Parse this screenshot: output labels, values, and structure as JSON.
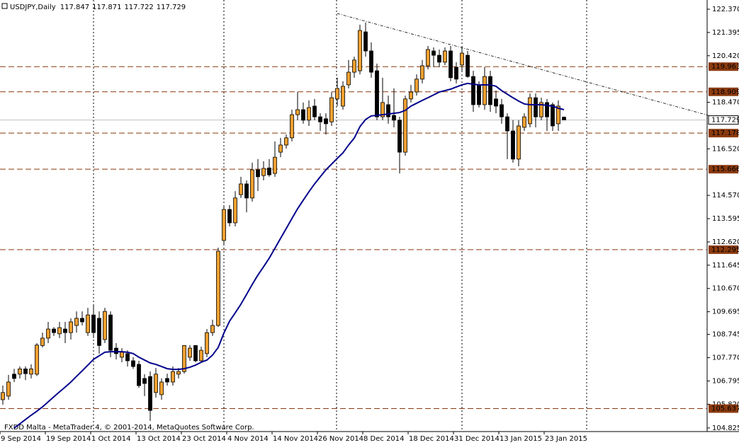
{
  "chart_data": {
    "type": "candlestick",
    "title": "USDJPY,Daily",
    "footer": "FXDD Malta - MetaTrader 4, © 2001-2014, MetaQuotes Software Corp.",
    "categories": [
      "9 Sep 2014",
      null,
      null,
      null,
      null,
      null,
      null,
      null,
      "19 Sep 2014",
      null,
      null,
      null,
      null,
      null,
      null,
      null,
      "1 Oct 2014",
      null,
      null,
      null,
      null,
      null,
      null,
      null,
      "13 Oct 2014",
      null,
      null,
      null,
      null,
      null,
      null,
      null,
      "23 Oct 2014",
      null,
      null,
      null,
      null,
      null,
      null,
      null,
      "4 Nov 2014",
      null,
      null,
      null,
      null,
      null,
      null,
      null,
      "14 Nov 2014",
      null,
      null,
      null,
      null,
      null,
      null,
      null,
      "26 Nov 2014",
      null,
      null,
      null,
      null,
      null,
      null,
      null,
      "8 Dec 2014",
      null,
      null,
      null,
      null,
      null,
      null,
      null,
      "18 Dec 2014",
      null,
      null,
      null,
      null,
      null,
      null,
      null,
      "31 Dec 2014",
      null,
      null,
      null,
      null,
      null,
      null,
      null,
      "13 Jan 2015",
      null,
      null,
      null,
      null,
      null,
      null,
      null,
      "23 Jan 2015",
      null,
      null,
      null
    ],
    "open": [
      106.01,
      106.16,
      107.08,
      107.08,
      107.3,
      107.08,
      107.08,
      108.28,
      108.59,
      108.97,
      108.77,
      108.97,
      108.82,
      109.12,
      109.42,
      108.82,
      109.56,
      109.42,
      108.53,
      109.56,
      108.17,
      107.79,
      107.94,
      107.64,
      107.49,
      106.9,
      106.98,
      106.31,
      106.22,
      106.9,
      106.75,
      107.08,
      107.19,
      107.79,
      108.28,
      107.64,
      107.94,
      108.82,
      109.12,
      112.68,
      113.98,
      113.42,
      114.6,
      115.05,
      114.46,
      115.64,
      115.4,
      115.72,
      115.49,
      116.38,
      116.68,
      116.98,
      117.95,
      118.16,
      117.72,
      118.31,
      117.86,
      117.78,
      117.65,
      118.61,
      118.31,
      119.2,
      119.73,
      119.79,
      121.42,
      120.62,
      119.79,
      117.86,
      118.37,
      117.92,
      117.72,
      116.38,
      118.61,
      118.9,
      119.44,
      120.0,
      120.62,
      120.44,
      120.15,
      120.62,
      119.94,
      120.03,
      120.44,
      119.55,
      119.2,
      118.37,
      119.55,
      118.61,
      118.37,
      117.86,
      117.27,
      116.09,
      117.42,
      117.57,
      118.66,
      117.86,
      118.46,
      118.37,
      117.57,
      117.847
    ],
    "high": [
      106.6,
      107.05,
      107.3,
      107.4,
      107.4,
      107.49,
      108.38,
      108.82,
      109.27,
      109.05,
      109.27,
      109.27,
      109.42,
      109.71,
      109.71,
      109.86,
      110.01,
      109.71,
      109.86,
      109.71,
      108.38,
      108.17,
      108.08,
      107.79,
      107.64,
      107.08,
      107.19,
      107.34,
      106.9,
      107.1,
      107.4,
      107.34,
      108.3,
      108.3,
      108.3,
      108.23,
      108.97,
      109.36,
      112.38,
      114.16,
      114.16,
      114.75,
      115.35,
      115.2,
      115.94,
      116.09,
      116.0,
      116.09,
      116.83,
      116.98,
      117.12,
      118.16,
      118.9,
      118.46,
      118.55,
      118.61,
      118.01,
      118.01,
      118.9,
      119.5,
      119.35,
      120.24,
      120.38,
      121.72,
      121.81,
      120.98,
      120.09,
      119.5,
      118.75,
      119.05,
      117.86,
      118.75,
      119.2,
      119.64,
      120.24,
      120.83,
      120.77,
      120.68,
      120.77,
      120.83,
      120.15,
      120.77,
      120.62,
      119.79,
      119.35,
      119.94,
      119.79,
      118.96,
      118.61,
      118.01,
      117.72,
      117.72,
      118.01,
      118.84,
      118.84,
      118.66,
      118.61,
      118.46,
      118.55,
      117.871
    ],
    "low": [
      105.8,
      106.01,
      106.75,
      106.9,
      106.83,
      106.9,
      107.0,
      108.2,
      108.38,
      108.68,
      108.59,
      108.38,
      108.53,
      108.82,
      109.12,
      108.68,
      108.59,
      107.94,
      108.38,
      107.79,
      107.7,
      107.58,
      107.4,
      107.3,
      106.51,
      106.16,
      105.12,
      106.1,
      106.01,
      106.6,
      106.6,
      106.9,
      107.1,
      107.64,
      107.58,
      107.58,
      107.79,
      108.68,
      109.06,
      112.53,
      113.27,
      113.27,
      114.46,
      113.86,
      114.31,
      114.75,
      115.2,
      115.35,
      115.35,
      116.17,
      116.53,
      116.83,
      117.72,
      117.57,
      117.48,
      117.72,
      117.27,
      117.12,
      117.48,
      118.31,
      118.16,
      119.05,
      119.5,
      119.64,
      120.38,
      119.5,
      117.72,
      117.72,
      117.57,
      117.42,
      115.49,
      116.23,
      118.46,
      118.75,
      119.26,
      119.85,
      119.94,
      119.94,
      120.03,
      119.35,
      119.26,
      119.79,
      119.5,
      118.07,
      118.25,
      118.16,
      118.07,
      118.01,
      117.57,
      116.09,
      115.94,
      115.79,
      117.27,
      117.42,
      117.42,
      117.72,
      117.27,
      117.27,
      117.27,
      117.722
    ],
    "close": [
      106.31,
      106.75,
      106.9,
      107.3,
      107.1,
      107.3,
      108.3,
      108.59,
      108.97,
      108.82,
      109.03,
      108.82,
      109.27,
      109.42,
      109.27,
      109.56,
      108.82,
      108.28,
      109.71,
      108.08,
      107.94,
      108.0,
      107.64,
      107.4,
      106.6,
      106.69,
      105.56,
      107.08,
      106.75,
      106.75,
      107.19,
      107.19,
      108.28,
      108.17,
      107.64,
      108.08,
      108.82,
      109.12,
      112.23,
      113.98,
      113.42,
      114.46,
      115.05,
      114.46,
      115.64,
      115.35,
      115.7,
      115.43,
      116.17,
      116.68,
      116.98,
      117.95,
      118.16,
      117.72,
      118.25,
      117.86,
      117.65,
      117.57,
      118.66,
      119.05,
      119.14,
      119.73,
      120.24,
      121.48,
      120.62,
      119.73,
      117.86,
      118.46,
      117.86,
      117.72,
      116.38,
      118.61,
      118.9,
      119.44,
      120.0,
      120.68,
      120.44,
      120.15,
      120.62,
      119.5,
      119.44,
      120.53,
      119.55,
      118.37,
      118.37,
      119.55,
      118.37,
      118.31,
      117.86,
      117.27,
      116.09,
      117.48,
      117.86,
      118.66,
      117.86,
      118.46,
      117.86,
      117.48,
      118.31,
      117.729
    ],
    "ma": [
      null,
      null,
      104.82,
      105.0,
      105.18,
      105.36,
      105.53,
      105.71,
      105.92,
      106.13,
      106.34,
      106.54,
      106.75,
      106.99,
      107.22,
      107.46,
      107.7,
      107.85,
      108.0,
      108.02,
      108.02,
      108.02,
      108.0,
      107.94,
      107.79,
      107.67,
      107.55,
      107.49,
      107.4,
      107.31,
      107.28,
      107.28,
      107.31,
      107.37,
      107.46,
      107.58,
      107.67,
      107.88,
      108.2,
      108.8,
      109.3,
      109.65,
      110.01,
      110.42,
      110.84,
      111.23,
      111.58,
      111.94,
      112.35,
      112.77,
      113.18,
      113.6,
      114.01,
      114.37,
      114.72,
      115.05,
      115.35,
      115.64,
      115.88,
      116.12,
      116.35,
      116.68,
      116.97,
      117.45,
      117.75,
      117.9,
      117.92,
      117.95,
      117.98,
      118.01,
      118.04,
      118.13,
      118.31,
      118.43,
      118.55,
      118.66,
      118.78,
      118.9,
      118.96,
      119.02,
      119.11,
      119.2,
      119.26,
      119.23,
      119.2,
      119.2,
      119.2,
      119.14,
      118.96,
      118.81,
      118.66,
      118.52,
      118.4,
      118.37,
      118.37,
      118.37,
      118.34,
      118.31,
      118.22,
      118.16
    ],
    "levels": [
      119.963,
      118.909,
      117.178,
      115.666,
      112.295,
      105.637
    ],
    "trendline": {
      "x": [
        59,
        124.5
      ],
      "y": [
        122.19,
        117.92
      ]
    },
    "up_color": "#f0a030",
    "down_color": "#000000",
    "ma_color": "#00008b",
    "level_color": "#8b3a0f",
    "ylim": [
      104.675,
      122.755
    ],
    "yticks": [
      {
        "value": 122.37,
        "label": "122.370"
      },
      121.395,
      {
        "value": 120.42,
        "label": "120.420"
      },
      {
        "value": 118.47,
        "label": "118.470"
      },
      {
        "value": 116.52,
        "label": "116.520"
      },
      {
        "value": 114.57,
        "label": "114.570"
      },
      113.595,
      {
        "value": 112.62,
        "label": "112.620"
      },
      111.645,
      {
        "value": 110.67,
        "label": "110.670"
      },
      109.695,
      108.745,
      {
        "value": 107.77,
        "label": "107.770"
      },
      106.795,
      {
        "value": 105.82,
        "label": "105.820"
      },
      104.825
    ]
  }
}
